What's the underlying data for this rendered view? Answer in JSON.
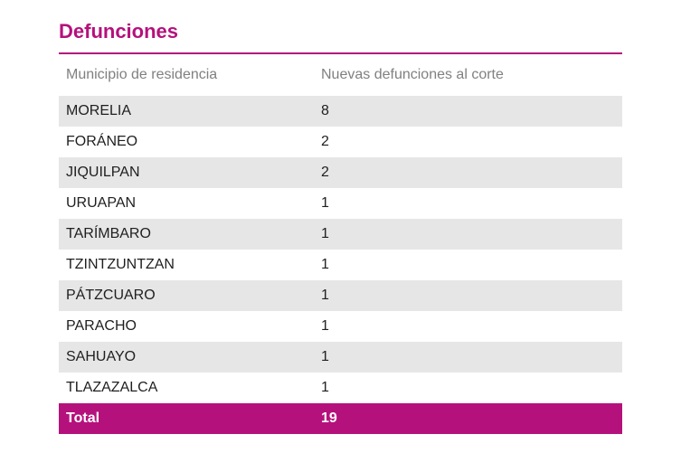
{
  "title": "Defunciones",
  "colors": {
    "accent": "#b5117c",
    "stripe": "#e6e6e6",
    "header_text": "#808080"
  },
  "table": {
    "headers": [
      "Municipio de residencia",
      "Nuevas defunciones al corte"
    ],
    "rows": [
      {
        "municipio": "MORELIA",
        "defunciones": "8"
      },
      {
        "municipio": "FORÁNEO",
        "defunciones": "2"
      },
      {
        "municipio": "JIQUILPAN",
        "defunciones": "2"
      },
      {
        "municipio": "URUAPAN",
        "defunciones": "1"
      },
      {
        "municipio": "TARÍMBARO",
        "defunciones": "1"
      },
      {
        "municipio": "TZINTZUNTZAN",
        "defunciones": "1"
      },
      {
        "municipio": "PÁTZCUARO",
        "defunciones": "1"
      },
      {
        "municipio": "PARACHO",
        "defunciones": "1"
      },
      {
        "municipio": "SAHUAYO",
        "defunciones": "1"
      },
      {
        "municipio": "TLAZAZALCA",
        "defunciones": "1"
      }
    ],
    "total": {
      "label": "Total",
      "value": "19"
    }
  }
}
